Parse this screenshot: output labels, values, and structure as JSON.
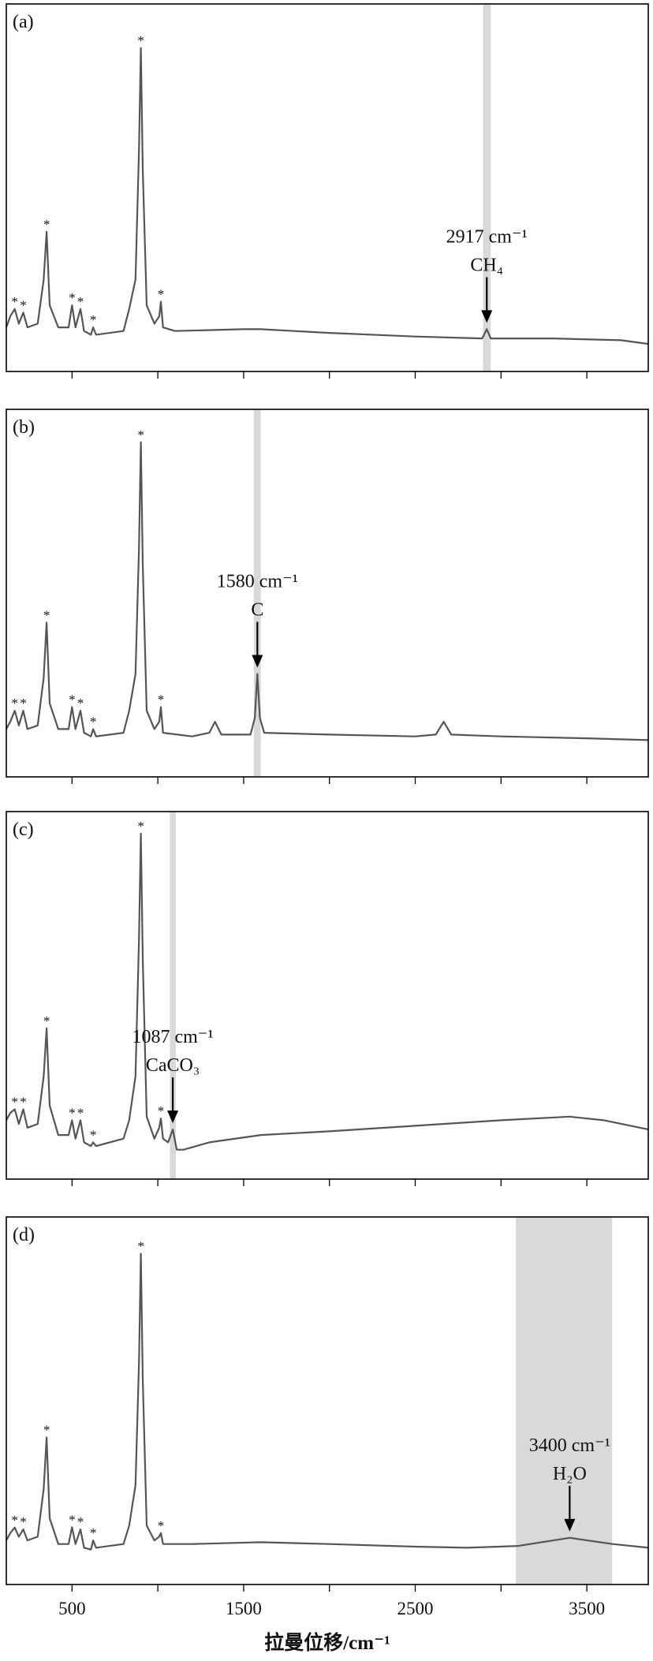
{
  "chart_data": [
    {
      "type": "line",
      "panel_label": "(a)",
      "xlim": [
        117,
        3858
      ],
      "ylim": [
        0,
        100
      ],
      "xticks": [
        500,
        1500,
        2500,
        3500
      ],
      "xminorticks": [
        1000,
        2000,
        3000
      ],
      "tick_labels": false,
      "highlight": [
        2895,
        2940
      ],
      "annotation": {
        "text": "2917 cm⁻¹",
        "species": "CH₄",
        "x": 2917
      },
      "peak_marker": "*",
      "marked_peaks": [
        166,
        216,
        352,
        500,
        549,
        623,
        901,
        1018
      ],
      "series": [
        {
          "color": "#555555",
          "x": [
            117,
            140,
            166,
            190,
            216,
            240,
            300,
            335,
            352,
            370,
            420,
            480,
            500,
            520,
            549,
            570,
            610,
            623,
            640,
            800,
            833,
            870,
            890,
            901,
            912,
            935,
            980,
            1008,
            1018,
            1030,
            1100,
            1500,
            1600,
            2000,
            2500,
            2890,
            2917,
            2940,
            3300,
            3700,
            3860
          ],
          "values": [
            12,
            15,
            17,
            13,
            16,
            12,
            13,
            25,
            38,
            18,
            12,
            12,
            18,
            12,
            17,
            11,
            10,
            12,
            10,
            11,
            17,
            25,
            60,
            88,
            55,
            18,
            13,
            15,
            19,
            12,
            11,
            11.5,
            11.5,
            10.5,
            9.5,
            9,
            11.5,
            9,
            9,
            8.5,
            7.5
          ]
        }
      ]
    },
    {
      "type": "line",
      "panel_label": "(b)",
      "xlim": [
        117,
        3858
      ],
      "ylim": [
        0,
        100
      ],
      "xticks": [
        500,
        1500,
        2500,
        3500
      ],
      "xminorticks": [
        1000,
        2000,
        3000
      ],
      "tick_labels": false,
      "highlight": [
        1560,
        1600
      ],
      "annotation": {
        "text": "1580 cm⁻¹",
        "species": "C",
        "x": 1580
      },
      "peak_marker": "*",
      "marked_peaks": [
        166,
        216,
        352,
        500,
        549,
        623,
        901,
        1018
      ],
      "series": [
        {
          "color": "#555555",
          "x": [
            117,
            140,
            166,
            190,
            216,
            240,
            300,
            335,
            352,
            370,
            420,
            480,
            500,
            520,
            549,
            570,
            610,
            623,
            640,
            800,
            833,
            870,
            890,
            901,
            912,
            935,
            980,
            1008,
            1018,
            1030,
            1200,
            1300,
            1333,
            1370,
            1540,
            1565,
            1580,
            1595,
            1620,
            2000,
            2500,
            2620,
            2666,
            2710,
            3000,
            3500,
            3860
          ],
          "values": [
            13,
            15,
            18,
            14,
            18,
            13,
            14,
            27,
            42,
            20,
            13,
            13,
            19,
            13,
            18,
            12,
            11,
            13,
            11,
            12,
            18,
            28,
            62,
            91,
            58,
            18,
            13,
            15,
            19,
            12,
            11,
            12,
            15,
            11.5,
            11.5,
            16,
            28,
            16,
            12,
            11.5,
            11,
            11.5,
            15,
            11.5,
            11,
            10.5,
            10
          ]
        }
      ]
    },
    {
      "type": "line",
      "panel_label": "(c)",
      "xlim": [
        117,
        3858
      ],
      "ylim": [
        0,
        100
      ],
      "xticks": [
        500,
        1500,
        2500,
        3500
      ],
      "xminorticks": [
        1000,
        2000,
        3000
      ],
      "tick_labels": false,
      "highlight": [
        1070,
        1105
      ],
      "annotation": {
        "text": "1087 cm⁻¹",
        "species": "CaCO₃",
        "x": 1087
      },
      "peak_marker": "*",
      "marked_peaks": [
        166,
        216,
        352,
        500,
        549,
        623,
        901,
        1018
      ],
      "series": [
        {
          "color": "#555555",
          "x": [
            117,
            140,
            166,
            190,
            216,
            240,
            300,
            335,
            352,
            370,
            420,
            480,
            500,
            520,
            549,
            570,
            610,
            623,
            640,
            800,
            833,
            870,
            890,
            901,
            912,
            935,
            980,
            1008,
            1018,
            1030,
            1060,
            1087,
            1110,
            1150,
            1300,
            1600,
            2000,
            2500,
            3000,
            3400,
            3600,
            3860
          ],
          "values": [
            16,
            18,
            19,
            15,
            19,
            14,
            15,
            28,
            41,
            20,
            12,
            12,
            16,
            11,
            16,
            10,
            9,
            10,
            9,
            11,
            16,
            28,
            65,
            94,
            60,
            17,
            11,
            14,
            16.5,
            11,
            10,
            13.5,
            8,
            8,
            10,
            12,
            13,
            14.5,
            16,
            17,
            16,
            13.5
          ]
        }
      ]
    },
    {
      "type": "line",
      "panel_label": "(d)",
      "xlim": [
        117,
        3858
      ],
      "ylim": [
        0,
        100
      ],
      "xticks": [
        500,
        1500,
        2500,
        3500
      ],
      "xminorticks": [
        1000,
        2000,
        3000
      ],
      "tick_labels": true,
      "xlabel": "拉曼位移/cm⁻¹",
      "highlight": [
        3086,
        3648
      ],
      "annotation": {
        "text": "3400 cm⁻¹",
        "species": "H₂O",
        "x": 3400
      },
      "peak_marker": "*",
      "marked_peaks": [
        166,
        216,
        352,
        500,
        549,
        623,
        901,
        1018
      ],
      "series": [
        {
          "color": "#555555",
          "x": [
            117,
            140,
            166,
            190,
            216,
            240,
            300,
            335,
            352,
            370,
            420,
            480,
            500,
            520,
            549,
            570,
            610,
            623,
            640,
            800,
            833,
            870,
            890,
            901,
            912,
            935,
            980,
            1008,
            1018,
            1030,
            1200,
            1600,
            2000,
            2500,
            2800,
            3100,
            3400,
            3650,
            3860
          ],
          "values": [
            12,
            14,
            15.5,
            13,
            15,
            12,
            13,
            26,
            40,
            18,
            11,
            11,
            15.6,
            11,
            15,
            10,
            9.5,
            12,
            10,
            11,
            16,
            27,
            60,
            90,
            56,
            16,
            12,
            13,
            14,
            11,
            11,
            11.5,
            11,
            10.3,
            10,
            10.5,
            12.7,
            11,
            10
          ]
        }
      ]
    }
  ]
}
